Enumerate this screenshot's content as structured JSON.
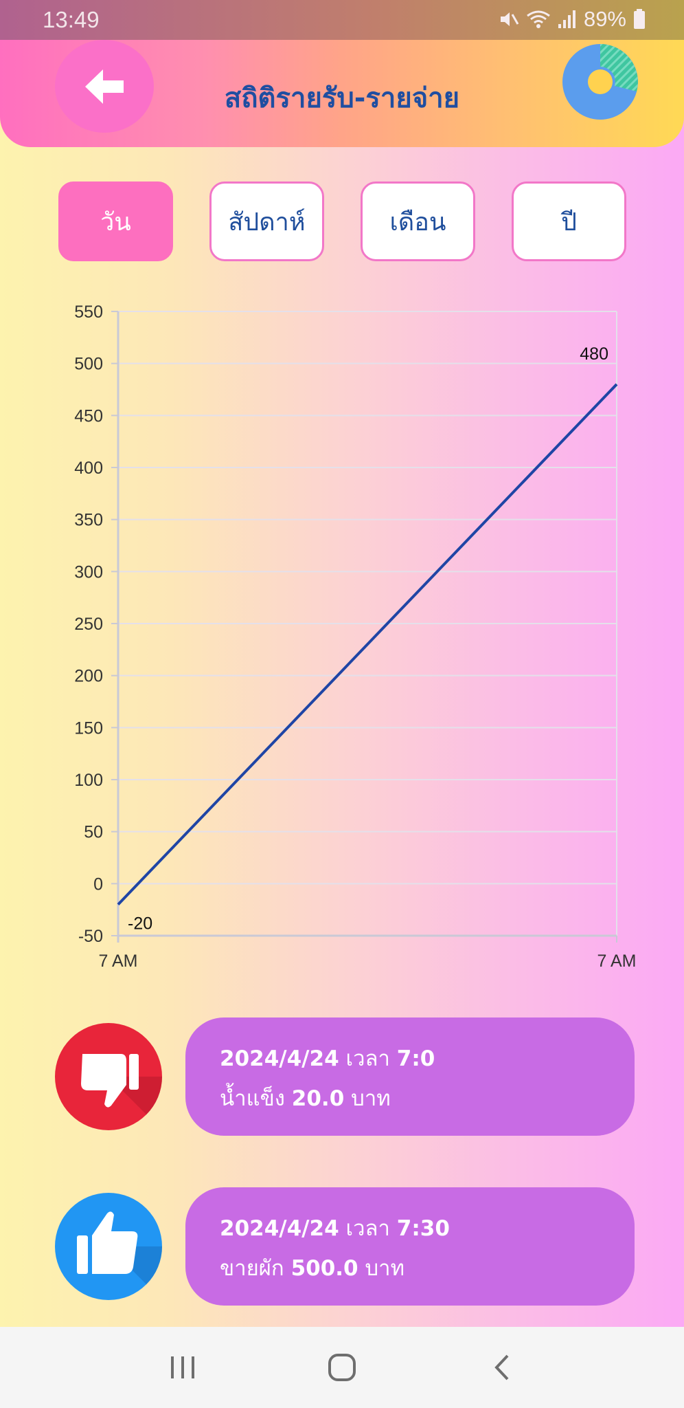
{
  "status_bar": {
    "time": "13:49",
    "battery": "89%",
    "icons": [
      "mute-icon",
      "wifi-icon",
      "signal-icon",
      "battery-icon"
    ]
  },
  "header": {
    "title": "สถิติรายรับ-รายจ่าย",
    "back_icon": "arrow-left-icon",
    "chart_icon": "donut-chart-icon"
  },
  "tabs": [
    {
      "label": "วัน",
      "active": true
    },
    {
      "label": "สัปดาห์",
      "active": false
    },
    {
      "label": "เดือน",
      "active": false
    },
    {
      "label": "ปี",
      "active": false
    }
  ],
  "chart_data": {
    "type": "line",
    "title": "",
    "xlabel": "",
    "ylabel": "",
    "x": [
      "7 AM",
      "7 AM"
    ],
    "series": [
      {
        "values": [
          -20,
          480
        ],
        "color": "#1f45a5"
      }
    ],
    "data_labels": [
      "-20",
      "480"
    ],
    "ylim": [
      -50,
      550
    ],
    "yticks": [
      -50,
      0,
      50,
      100,
      150,
      200,
      250,
      300,
      350,
      400,
      450,
      500,
      550
    ],
    "grid": true,
    "legend": "none"
  },
  "transactions": [
    {
      "kind": "expense",
      "icon": "thumbs-down-icon",
      "icon_color": "#e8253a",
      "date": "2024/4/24",
      "time_label": "เวลา",
      "time": "7:0",
      "item": "น้ำแข็ง",
      "amount": "20.0",
      "currency": "บาท"
    },
    {
      "kind": "income",
      "icon": "thumbs-up-icon",
      "icon_color": "#2196f3",
      "date": "2024/4/24",
      "time_label": "เวลา",
      "time": "7:30",
      "item": "ขายผัก",
      "amount": "500.0",
      "currency": "บาท"
    }
  ],
  "navbar": {
    "buttons": [
      "recent-apps-icon",
      "home-icon",
      "back-nav-icon"
    ]
  },
  "colors": {
    "accent_pink": "#fd6fbf",
    "title_blue": "#1f4ea1",
    "card_purple": "#c86be4",
    "line_blue": "#1f45a5"
  }
}
